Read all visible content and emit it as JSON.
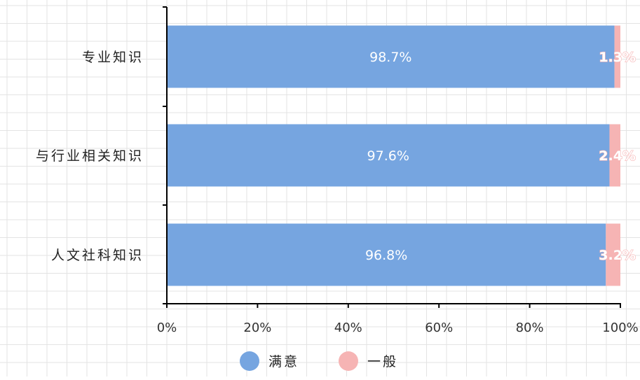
{
  "chart_data": {
    "type": "bar",
    "orientation": "horizontal",
    "stacked": true,
    "percent_stacked": true,
    "categories": [
      "专业知识",
      "与行业相关知识",
      "人文社科知识"
    ],
    "series": [
      {
        "name": "满意",
        "values": [
          98.7,
          97.6,
          96.8
        ],
        "labels": [
          "98.7%",
          "97.6%",
          "96.8%"
        ],
        "color": "#76a5e0"
      },
      {
        "name": "一般",
        "values": [
          1.3,
          2.4,
          3.2
        ],
        "labels": [
          "1.3%",
          "2.4%",
          "3.2%"
        ],
        "color": "#f6b4b4"
      }
    ],
    "xlim": [
      0,
      100
    ],
    "x_ticks": [
      "0%",
      "20%",
      "40%",
      "60%",
      "80%",
      "100%"
    ],
    "grid": true,
    "legend_position": "bottom"
  }
}
